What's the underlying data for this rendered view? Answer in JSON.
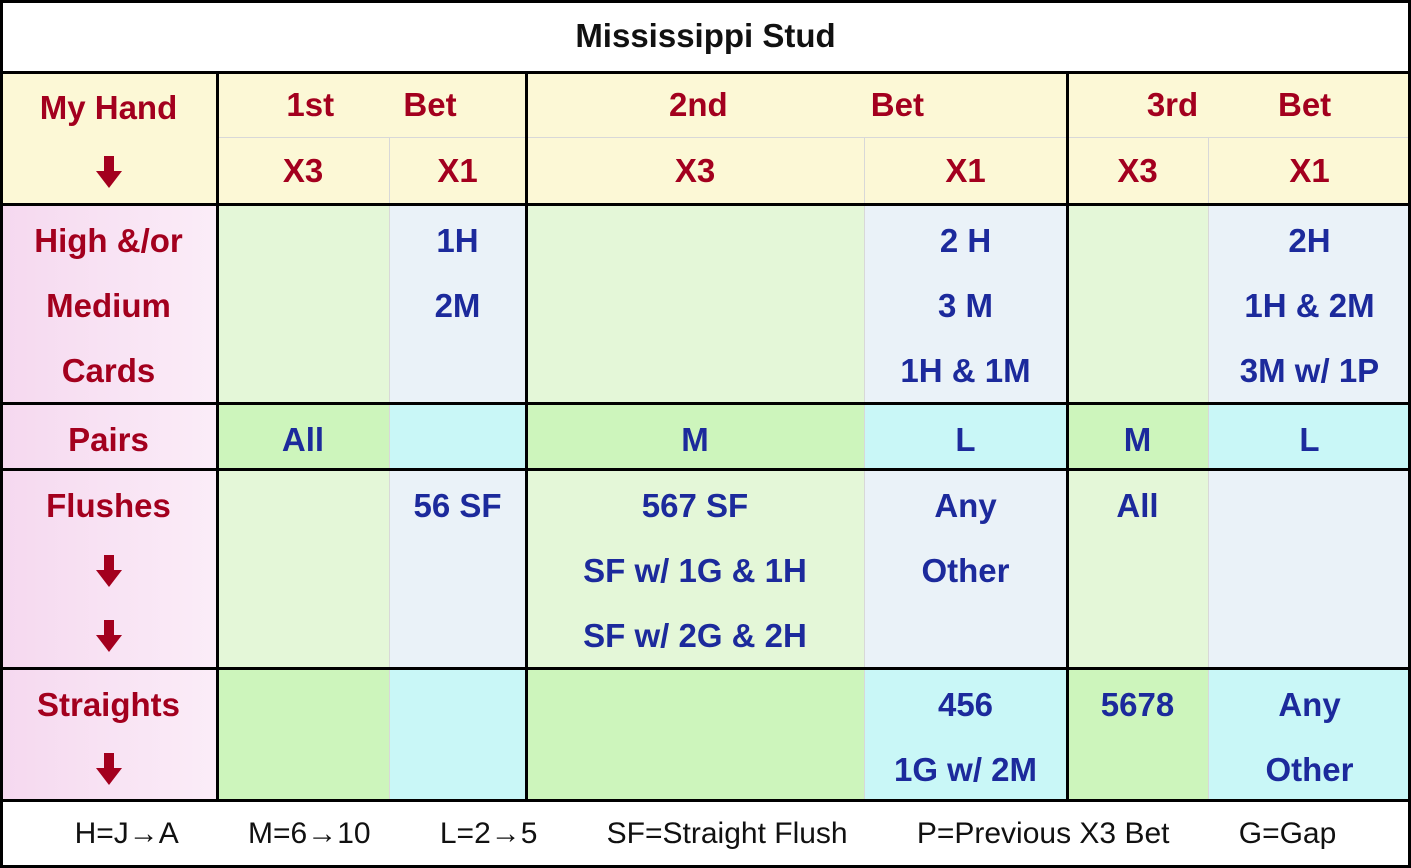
{
  "title": "Mississippi Stud",
  "header": {
    "row_label": "My Hand",
    "bets": [
      {
        "ordinal": "1st",
        "word": "Bet"
      },
      {
        "ordinal": "2nd",
        "word": "Bet"
      },
      {
        "ordinal": "3rd",
        "word": "Bet"
      }
    ],
    "multipliers": [
      "X3",
      "X1",
      "X3",
      "X1",
      "X3",
      "X1"
    ]
  },
  "rows": [
    {
      "label": [
        "High &/or",
        "Medium",
        "Cards"
      ],
      "cells": [
        [],
        [
          "1H",
          "2M"
        ],
        [],
        [
          "2 H",
          "3 M",
          "1H & 1M"
        ],
        [],
        [
          "2H",
          "1H & 2M",
          "3M w/ 1P"
        ]
      ]
    },
    {
      "label": [
        "Pairs"
      ],
      "cells": [
        [
          "All"
        ],
        [],
        [
          "M"
        ],
        [
          "L"
        ],
        [
          "M"
        ],
        [
          "L"
        ]
      ]
    },
    {
      "label": [
        "Flushes"
      ],
      "cells": [
        [],
        [
          "56 SF"
        ],
        [
          "567 SF",
          "SF w/ 1G & 1H",
          "SF w/ 2G & 2H"
        ],
        [
          "Any",
          "Other"
        ],
        [
          "All"
        ],
        []
      ]
    },
    {
      "label": [
        "Straights"
      ],
      "cells": [
        [],
        [],
        [],
        [
          "456",
          "1G w/ 2M"
        ],
        [
          "5678"
        ],
        [
          "Any",
          "Other"
        ]
      ]
    }
  ],
  "legend": [
    "H=J→A",
    "M=6→10",
    "L=2→5",
    "SF=Straight Flush",
    "P=Previous X3 Bet",
    "G=Gap"
  ]
}
